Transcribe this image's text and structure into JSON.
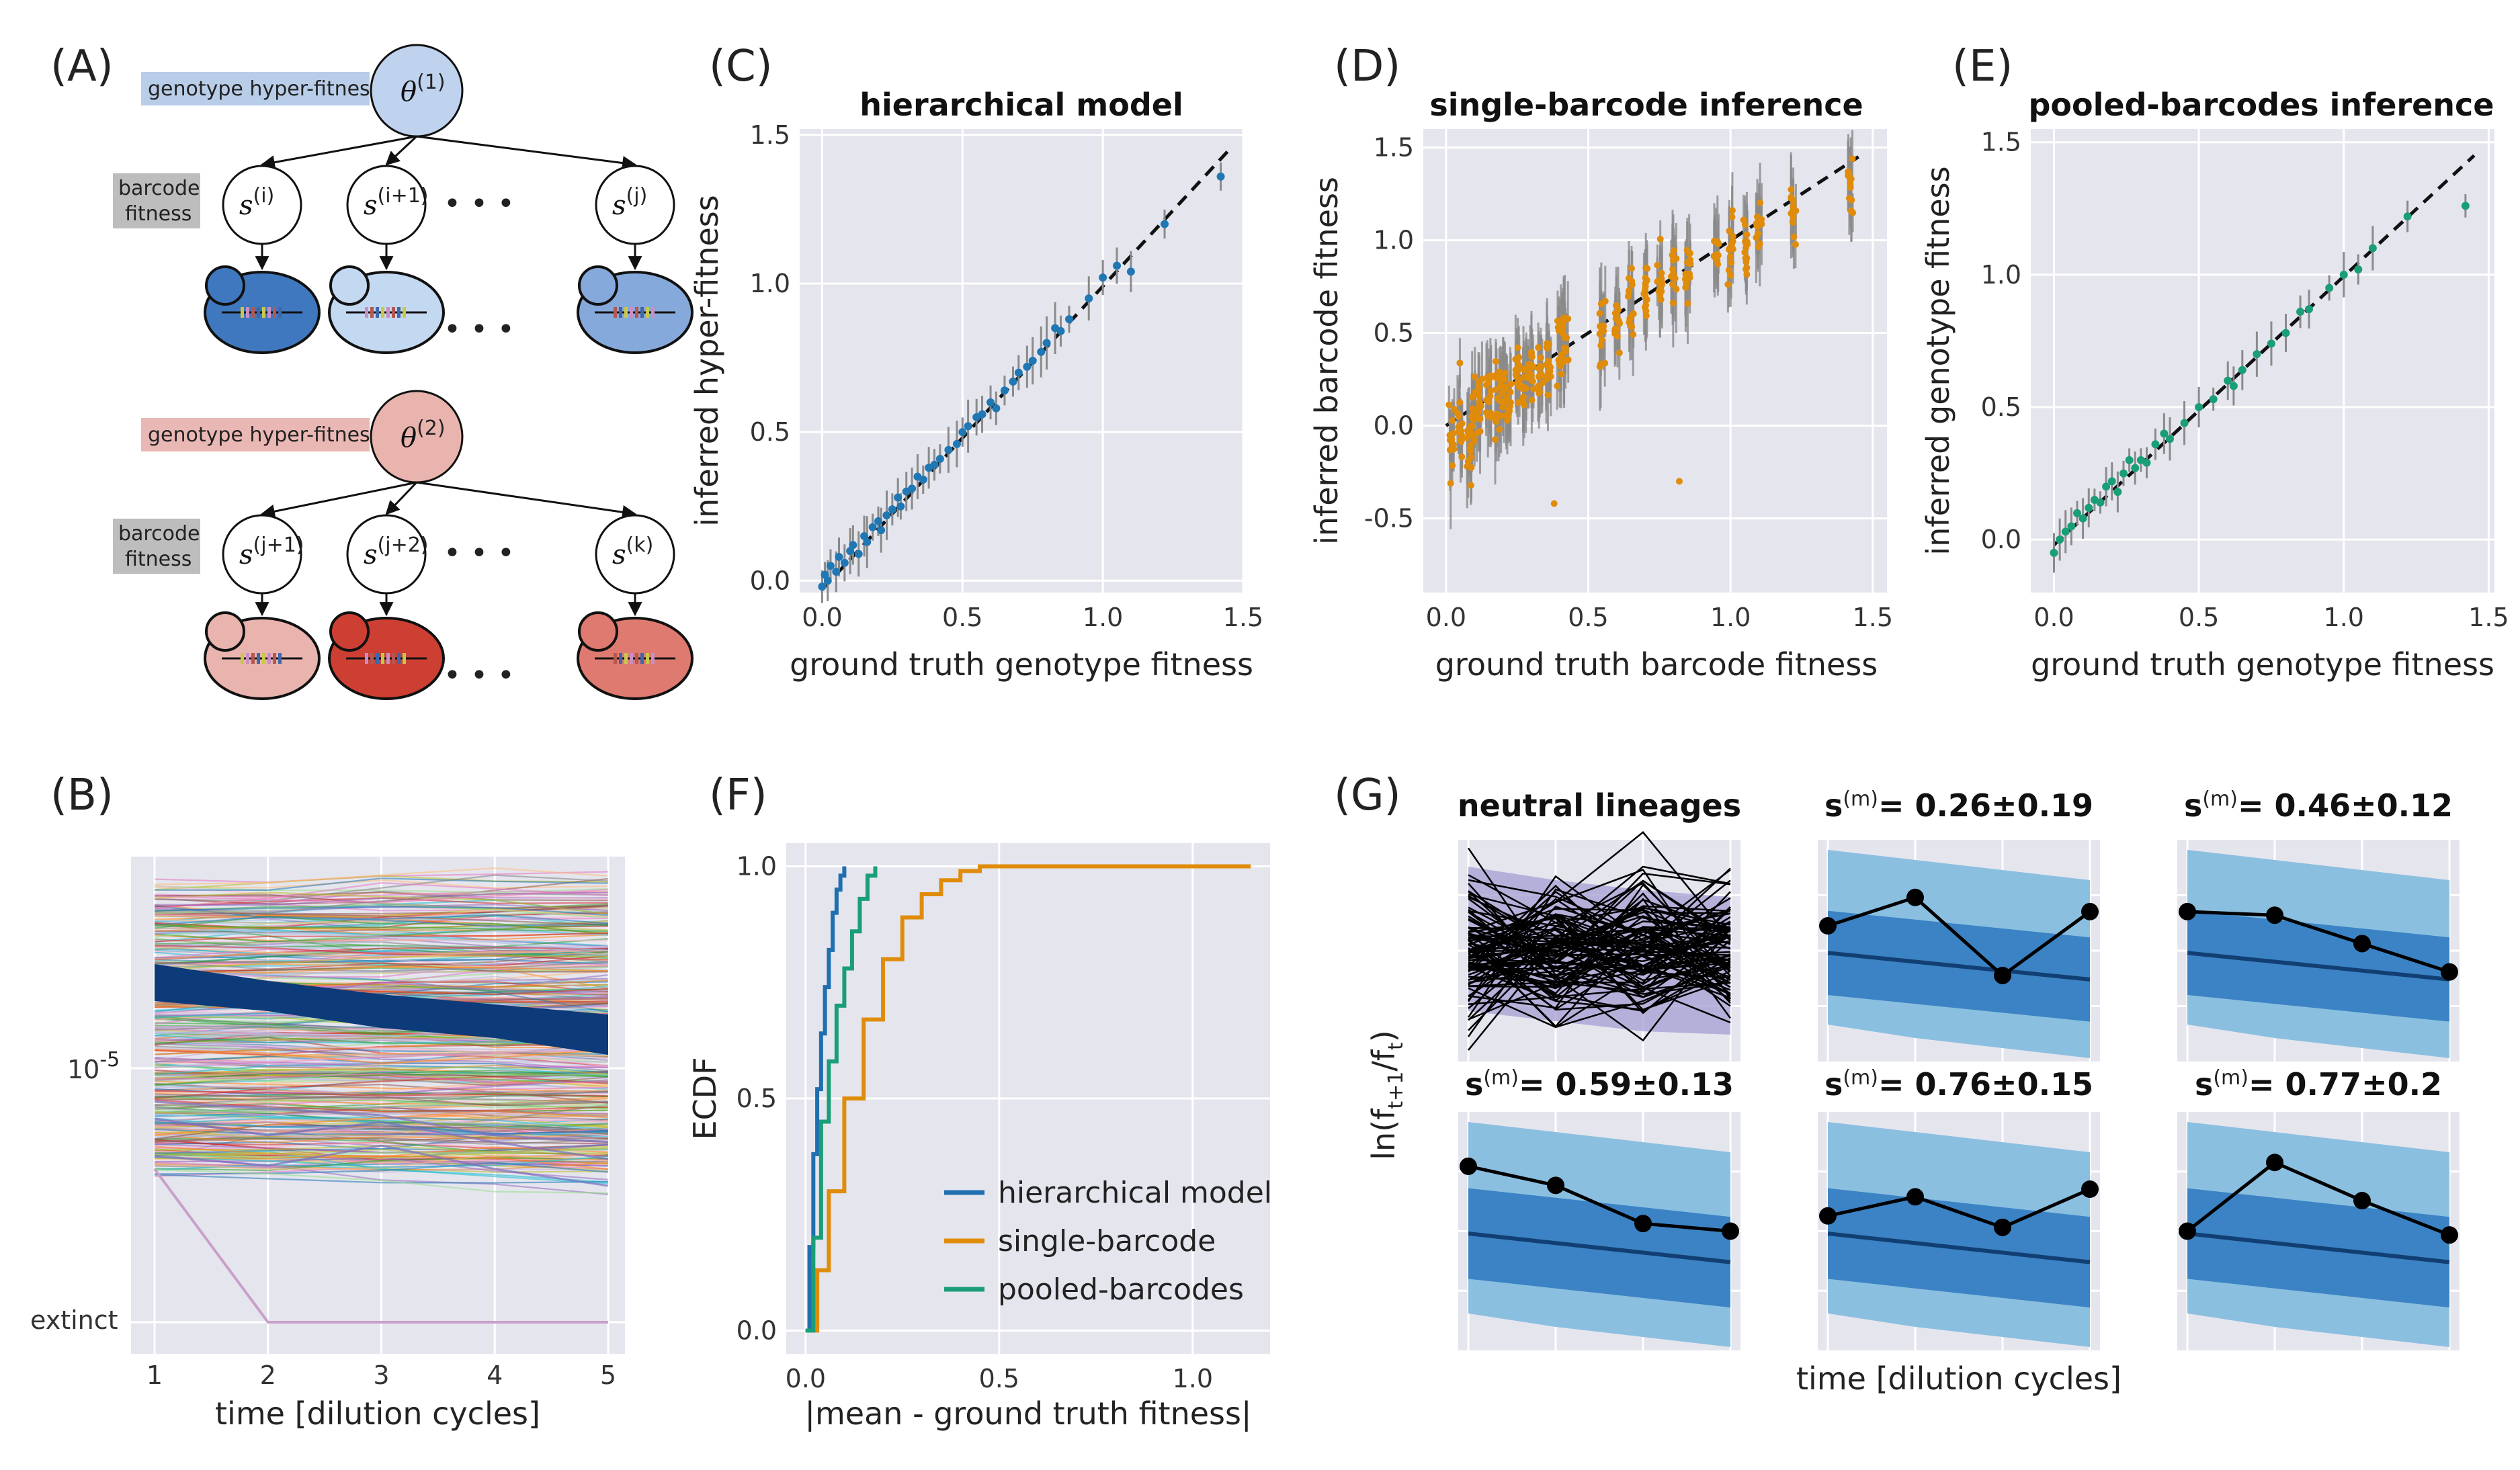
{
  "panel_letters": [
    "(A)",
    "(B)",
    "(C)",
    "(D)",
    "(E)",
    "(F)",
    "(G)"
  ],
  "diagram": {
    "hyper_label": "genotype hyper-fitness",
    "barcode_label_1": "barcode",
    "barcode_label_2": "fitness",
    "theta1_base": "θ",
    "theta1_sup": "(1)",
    "theta2_base": "θ",
    "theta2_sup": "(2)",
    "s_base": "s",
    "s_sups_top": [
      "(i)",
      "(i+1)",
      "(j)"
    ],
    "s_sups_bottom": [
      "(j+1)",
      "(j+2)",
      "(k)"
    ],
    "ellipsis": "• • •",
    "colors": {
      "hyper_top_bg": "#b8cde8",
      "hyper_bottom_bg": "#eab8b4",
      "barcode_bg": "#bdbdbd",
      "theta1_fill": "#bfd3ee",
      "theta2_fill": "#eab4ae"
    }
  },
  "chart_data": [
    {
      "id": "B",
      "type": "line",
      "xlabel": "time [dilution cycles]",
      "ylabel": "",
      "x": [
        1,
        2,
        3,
        4,
        5
      ],
      "xticks": [
        "1",
        "2",
        "3",
        "4",
        "5"
      ],
      "yticks": [
        {
          "label_base": "10",
          "label_sup": "-5",
          "value": "1e-5"
        },
        {
          "label": "extinct",
          "value": "extinct"
        }
      ],
      "series_count_approx": 400,
      "highlight_band_color": "#0d3a78",
      "grid": true
    },
    {
      "id": "C",
      "type": "scatter",
      "title": "hierarchical model",
      "xlabel": "ground truth genotype fitness",
      "ylabel": "inferred hyper-fitness",
      "xlim": [
        -0.08,
        1.5
      ],
      "ylim": [
        -0.04,
        1.52
      ],
      "xticks": [
        "0.0",
        "0.5",
        "1.0",
        "1.5"
      ],
      "yticks": [
        "0.0",
        "0.5",
        "1.0",
        "1.5"
      ],
      "color": "#1f77b4",
      "points": [
        [
          0.0,
          -0.02
        ],
        [
          0.01,
          0.02
        ],
        [
          0.02,
          0.0
        ],
        [
          0.03,
          0.05
        ],
        [
          0.05,
          0.03
        ],
        [
          0.06,
          0.08
        ],
        [
          0.08,
          0.06
        ],
        [
          0.1,
          0.1
        ],
        [
          0.11,
          0.12
        ],
        [
          0.13,
          0.09
        ],
        [
          0.15,
          0.15
        ],
        [
          0.16,
          0.13
        ],
        [
          0.18,
          0.18
        ],
        [
          0.2,
          0.2
        ],
        [
          0.21,
          0.17
        ],
        [
          0.23,
          0.22
        ],
        [
          0.25,
          0.24
        ],
        [
          0.27,
          0.28
        ],
        [
          0.28,
          0.25
        ],
        [
          0.3,
          0.3
        ],
        [
          0.32,
          0.31
        ],
        [
          0.34,
          0.35
        ],
        [
          0.36,
          0.34
        ],
        [
          0.38,
          0.38
        ],
        [
          0.4,
          0.39
        ],
        [
          0.42,
          0.41
        ],
        [
          0.45,
          0.44
        ],
        [
          0.48,
          0.46
        ],
        [
          0.5,
          0.5
        ],
        [
          0.52,
          0.52
        ],
        [
          0.55,
          0.55
        ],
        [
          0.57,
          0.56
        ],
        [
          0.6,
          0.6
        ],
        [
          0.62,
          0.58
        ],
        [
          0.65,
          0.64
        ],
        [
          0.68,
          0.67
        ],
        [
          0.7,
          0.7
        ],
        [
          0.73,
          0.72
        ],
        [
          0.75,
          0.74
        ],
        [
          0.78,
          0.77
        ],
        [
          0.8,
          0.8
        ],
        [
          0.83,
          0.85
        ],
        [
          0.85,
          0.84
        ],
        [
          0.88,
          0.88
        ],
        [
          0.95,
          0.95
        ],
        [
          1.0,
          1.02
        ],
        [
          1.05,
          1.06
        ],
        [
          1.1,
          1.04
        ],
        [
          1.22,
          1.2
        ],
        [
          1.42,
          1.36
        ]
      ],
      "diagonal": {
        "from": [
          0.0,
          -0.03
        ],
        "to": [
          1.45,
          1.45
        ],
        "style": "dashed"
      }
    },
    {
      "id": "D",
      "type": "scatter",
      "title": "single-barcode inference",
      "xlabel": "ground truth barcode fitness",
      "ylabel": "inferred barcode fitness",
      "xlim": [
        -0.08,
        1.55
      ],
      "ylim": [
        -0.9,
        1.6
      ],
      "xticks": [
        "0.0",
        "0.5",
        "1.0",
        "1.5"
      ],
      "yticks": [
        "-0.5",
        "0.0",
        "0.5",
        "1.0",
        "1.5"
      ],
      "color": "#e08c0b",
      "point_clusters": [
        [
          0.02,
          -0.05
        ],
        [
          0.05,
          0.0
        ],
        [
          0.08,
          -0.1
        ],
        [
          0.1,
          0.05
        ],
        [
          0.12,
          0.1
        ],
        [
          0.15,
          0.15
        ],
        [
          0.18,
          0.1
        ],
        [
          0.2,
          0.2
        ],
        [
          0.22,
          0.15
        ],
        [
          0.25,
          0.25
        ],
        [
          0.28,
          0.2
        ],
        [
          0.3,
          0.3
        ],
        [
          0.33,
          0.25
        ],
        [
          0.36,
          0.35
        ],
        [
          0.4,
          0.4
        ],
        [
          0.42,
          0.45
        ],
        [
          0.55,
          0.5
        ],
        [
          0.6,
          0.55
        ],
        [
          0.65,
          0.65
        ],
        [
          0.7,
          0.7
        ],
        [
          0.75,
          0.75
        ],
        [
          0.8,
          0.8
        ],
        [
          0.85,
          0.85
        ],
        [
          0.95,
          0.95
        ],
        [
          1.0,
          1.0
        ],
        [
          1.05,
          1.0
        ],
        [
          1.1,
          1.05
        ],
        [
          1.22,
          1.15
        ],
        [
          1.42,
          1.3
        ]
      ],
      "diagonal": {
        "from": [
          0.0,
          0.0
        ],
        "to": [
          1.45,
          1.45
        ],
        "style": "dashed"
      }
    },
    {
      "id": "E",
      "type": "scatter",
      "title": "pooled-barcodes inference",
      "xlabel": "ground truth genotype fitness",
      "ylabel": "inferred genotype fitness",
      "xlim": [
        -0.08,
        1.52
      ],
      "ylim": [
        -0.2,
        1.55
      ],
      "xticks": [
        "0.0",
        "0.5",
        "1.0",
        "1.5"
      ],
      "yticks": [
        "0.0",
        "0.5",
        "1.0",
        "1.5"
      ],
      "color": "#1a9e77",
      "points": [
        [
          0.0,
          -0.05
        ],
        [
          0.02,
          0.0
        ],
        [
          0.04,
          0.03
        ],
        [
          0.06,
          0.05
        ],
        [
          0.08,
          0.1
        ],
        [
          0.1,
          0.08
        ],
        [
          0.12,
          0.12
        ],
        [
          0.14,
          0.15
        ],
        [
          0.16,
          0.14
        ],
        [
          0.18,
          0.2
        ],
        [
          0.2,
          0.22
        ],
        [
          0.22,
          0.18
        ],
        [
          0.24,
          0.25
        ],
        [
          0.26,
          0.3
        ],
        [
          0.28,
          0.27
        ],
        [
          0.3,
          0.3
        ],
        [
          0.32,
          0.29
        ],
        [
          0.35,
          0.36
        ],
        [
          0.38,
          0.4
        ],
        [
          0.4,
          0.38
        ],
        [
          0.45,
          0.44
        ],
        [
          0.5,
          0.5
        ],
        [
          0.55,
          0.53
        ],
        [
          0.6,
          0.6
        ],
        [
          0.62,
          0.58
        ],
        [
          0.65,
          0.64
        ],
        [
          0.7,
          0.7
        ],
        [
          0.75,
          0.74
        ],
        [
          0.8,
          0.78
        ],
        [
          0.85,
          0.86
        ],
        [
          0.88,
          0.87
        ],
        [
          0.95,
          0.95
        ],
        [
          1.0,
          1.0
        ],
        [
          1.05,
          1.02
        ],
        [
          1.1,
          1.1
        ],
        [
          1.22,
          1.22
        ],
        [
          1.42,
          1.26
        ]
      ],
      "diagonal": {
        "from": [
          0.0,
          -0.02
        ],
        "to": [
          1.45,
          1.45
        ],
        "style": "dashed"
      }
    },
    {
      "id": "F",
      "type": "line",
      "xlabel": "|mean - ground truth fitness|",
      "ylabel": "ECDF",
      "xlim": [
        -0.05,
        1.2
      ],
      "ylim": [
        -0.05,
        1.05
      ],
      "xticks": [
        "0.0",
        "0.5",
        "1.0"
      ],
      "yticks": [
        "0.0",
        "0.5",
        "1.0"
      ],
      "legend_position": "bottom-right",
      "series": [
        {
          "name": "hierarchical model",
          "color": "#1f6fb0",
          "x": [
            0.0,
            0.01,
            0.02,
            0.03,
            0.04,
            0.05,
            0.06,
            0.07,
            0.08,
            0.09,
            0.1
          ],
          "y": [
            0.0,
            0.18,
            0.38,
            0.52,
            0.64,
            0.74,
            0.82,
            0.9,
            0.95,
            0.98,
            1.0
          ]
        },
        {
          "name": "single-barcode",
          "color": "#e08c0b",
          "x": [
            0.0,
            0.03,
            0.06,
            0.1,
            0.15,
            0.2,
            0.25,
            0.3,
            0.35,
            0.4,
            0.45,
            0.6,
            0.8,
            1.0,
            1.15
          ],
          "y": [
            0.0,
            0.13,
            0.3,
            0.5,
            0.67,
            0.8,
            0.89,
            0.94,
            0.97,
            0.99,
            1.0,
            1.0,
            1.0,
            1.0,
            1.0
          ]
        },
        {
          "name": "pooled-barcodes",
          "color": "#1a9e77",
          "x": [
            0.0,
            0.02,
            0.04,
            0.06,
            0.08,
            0.1,
            0.12,
            0.14,
            0.16,
            0.18
          ],
          "y": [
            0.0,
            0.2,
            0.45,
            0.58,
            0.7,
            0.78,
            0.86,
            0.93,
            0.98,
            1.0
          ]
        }
      ]
    },
    {
      "id": "G",
      "type": "line",
      "xlabel": "time [dilution cycles]",
      "ylabel_base": "ln(f",
      "ylabel_sub1": "t+1",
      "ylabel_mid": "/f",
      "ylabel_sub2": "t",
      "ylabel_end": ")",
      "subplots": [
        {
          "title": "neutral lineages",
          "kind": "neutral"
        },
        {
          "title_base": "s",
          "title_sup": "(m)",
          "title_rest": "= 0.26±0.19",
          "y": [
            0.35,
            0.75,
            -0.35,
            0.55
          ]
        },
        {
          "title_base": "s",
          "title_sup": "(m)",
          "title_rest": "= 0.46±0.12",
          "y": [
            0.55,
            0.5,
            0.1,
            -0.3
          ]
        },
        {
          "title_base": "s",
          "title_sup": "(m)",
          "title_rest": "= 0.59±0.13",
          "y": [
            0.85,
            0.6,
            0.1,
            0.0
          ]
        },
        {
          "title_base": "s",
          "title_sup": "(m)",
          "title_rest": "= 0.76±0.15",
          "y": [
            0.2,
            0.45,
            0.05,
            0.55
          ]
        },
        {
          "title_base": "s",
          "title_sup": "(m)",
          "title_rest": "= 0.77±0.2",
          "y": [
            0.0,
            0.9,
            0.4,
            -0.05
          ]
        }
      ],
      "band_colors": {
        "outer": "#8bbfe0",
        "inner": "#3b83c4",
        "mean": "#123f73",
        "neutral_band": "#a9a2d4"
      }
    }
  ]
}
